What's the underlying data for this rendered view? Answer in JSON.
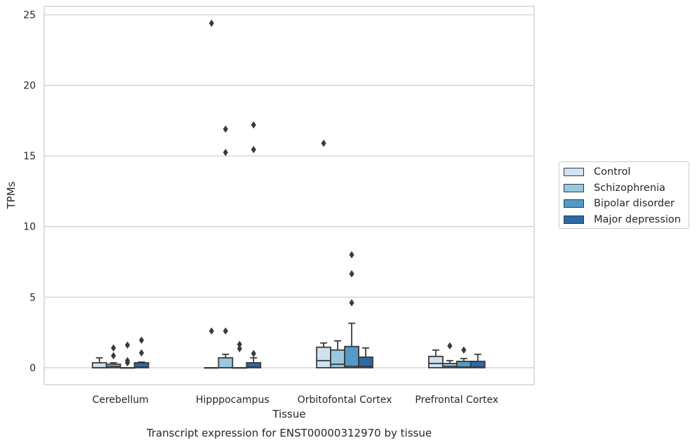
{
  "chart_data": {
    "type": "box",
    "title": "Transcript expression for ENST00000312970 by tissue",
    "xlabel": "Tissue",
    "ylabel": "TPMs",
    "ylim": [
      -1.2,
      25.6
    ],
    "yticks": [
      0,
      5,
      10,
      15,
      20,
      25
    ],
    "grid": "horizontal",
    "legend_position": "right",
    "categories": [
      "Cerebellum",
      "Hipppocampus",
      "Orbitofontal Cortex",
      "Prefrontal Cortex"
    ],
    "series": [
      {
        "name": "Control",
        "color": "#d0e1f2",
        "boxes": [
          {
            "whislo": 0,
            "q1": 0,
            "med": 0,
            "q3": 0.35,
            "whishi": 0.7,
            "fliers": []
          },
          {
            "whislo": 0,
            "q1": 0,
            "med": 0,
            "q3": 0,
            "whishi": 0,
            "fliers": [
              24.4,
              2.6
            ]
          },
          {
            "whislo": 0,
            "q1": 0,
            "med": 0.5,
            "q3": 1.45,
            "whishi": 1.75,
            "fliers": [
              15.9
            ]
          },
          {
            "whislo": 0,
            "q1": 0,
            "med": 0.3,
            "q3": 0.8,
            "whishi": 1.25,
            "fliers": []
          }
        ]
      },
      {
        "name": "Schizophrenia",
        "color": "#9ac8e0",
        "boxes": [
          {
            "whislo": 0,
            "q1": 0,
            "med": 0.1,
            "q3": 0.25,
            "whishi": 0.35,
            "fliers": [
              1.4,
              0.85
            ]
          },
          {
            "whislo": 0,
            "q1": 0,
            "med": 0,
            "q3": 0.7,
            "whishi": 0.95,
            "fliers": [
              16.9,
              15.25,
              2.6
            ]
          },
          {
            "whislo": 0,
            "q1": 0,
            "med": 0.25,
            "q3": 1.25,
            "whishi": 1.9,
            "fliers": []
          },
          {
            "whislo": 0,
            "q1": 0,
            "med": 0.1,
            "q3": 0.3,
            "whishi": 0.5,
            "fliers": [
              1.55
            ]
          }
        ]
      },
      {
        "name": "Bipolar disorder",
        "color": "#5499c7",
        "boxes": [
          {
            "whislo": 0,
            "q1": 0,
            "med": 0,
            "q3": 0,
            "whishi": 0,
            "fliers": [
              1.6,
              0.5,
              0.35
            ]
          },
          {
            "whislo": 0,
            "q1": 0,
            "med": 0,
            "q3": 0,
            "whishi": 0,
            "fliers": [
              1.65,
              1.35
            ]
          },
          {
            "whislo": 0,
            "q1": 0,
            "med": 0.1,
            "q3": 1.5,
            "whishi": 3.15,
            "fliers": [
              8.0,
              6.65,
              4.6
            ]
          },
          {
            "whislo": 0,
            "q1": 0,
            "med": 0.05,
            "q3": 0.45,
            "whishi": 0.65,
            "fliers": [
              1.25
            ]
          }
        ]
      },
      {
        "name": "Major depression",
        "color": "#2c69a8",
        "boxes": [
          {
            "whislo": 0,
            "q1": 0,
            "med": 0.05,
            "q3": 0.35,
            "whishi": 0.4,
            "fliers": [
              1.95,
              1.05
            ]
          },
          {
            "whislo": 0,
            "q1": 0,
            "med": 0.05,
            "q3": 0.35,
            "whishi": 0.7,
            "fliers": [
              17.2,
              15.45,
              1.0
            ]
          },
          {
            "whislo": 0,
            "q1": 0,
            "med": 0.1,
            "q3": 0.75,
            "whishi": 1.4,
            "fliers": []
          },
          {
            "whislo": 0,
            "q1": 0,
            "med": 0.05,
            "q3": 0.45,
            "whishi": 0.95,
            "fliers": []
          }
        ]
      }
    ]
  }
}
